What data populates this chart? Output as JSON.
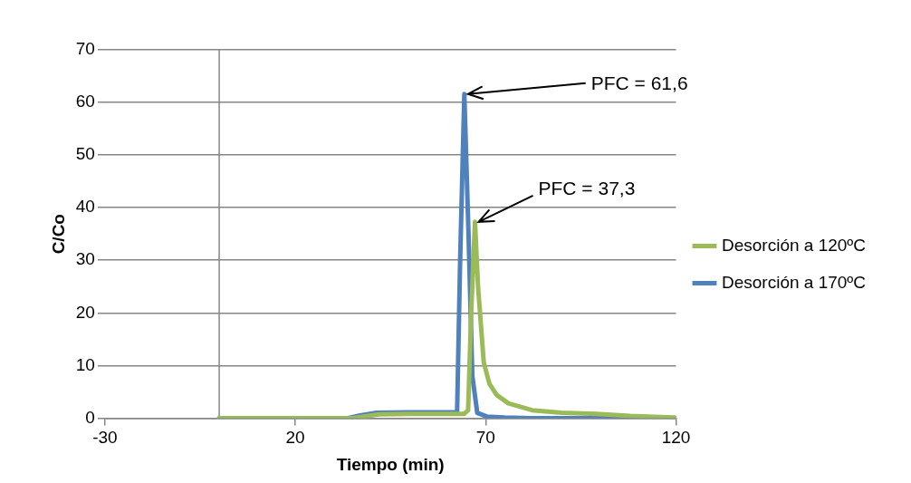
{
  "chart_data": {
    "type": "line",
    "xlabel": "Tiempo (min)",
    "ylabel": "C/Co",
    "xlim": [
      -30,
      120
    ],
    "xticks": [
      -30,
      20,
      70,
      120
    ],
    "ylim": [
      0,
      70
    ],
    "yticks": [
      0,
      10,
      20,
      30,
      40,
      50,
      60,
      70
    ],
    "grid": "y",
    "legend": "right",
    "marker": "none",
    "line_style": "solid",
    "ref_lines": [
      {
        "axis": "x",
        "value": 0,
        "color": "#868686"
      }
    ],
    "annotations": [
      {
        "text": "PFC = 61,6",
        "x": 64.4,
        "y": 61.6
      },
      {
        "text": "PFC = 37,3",
        "x": 67.2,
        "y": 37.3
      }
    ],
    "series": [
      {
        "name": "Desorción a 120ºC",
        "color": "#9bbb59",
        "x": [
          0,
          35,
          42,
          50,
          60,
          64.3,
          65.4,
          66.2,
          67.2,
          68,
          69.5,
          71,
          72.9,
          76,
          82.2,
          90,
          99.2,
          108,
          116,
          120
        ],
        "values": [
          0,
          0,
          0.7,
          0.8,
          0.8,
          0.8,
          1.5,
          20,
          37.3,
          25,
          10.6,
          6.5,
          4.4,
          2.8,
          1.5,
          1,
          0.8,
          0.4,
          0.2,
          0.1
        ]
      },
      {
        "name": "Desorción a 170ºC",
        "color": "#4f81bd",
        "x": [
          0,
          33.8,
          37,
          41.4,
          50,
          62.5,
          63.3,
          64.4,
          65.5,
          66.5,
          67.8,
          70.3,
          75,
          82,
          100,
          120
        ],
        "values": [
          0,
          0,
          0.5,
          1,
          1.1,
          1.1,
          30,
          61.6,
          35,
          8,
          1,
          0.3,
          0.1,
          0,
          0,
          0
        ]
      }
    ]
  }
}
